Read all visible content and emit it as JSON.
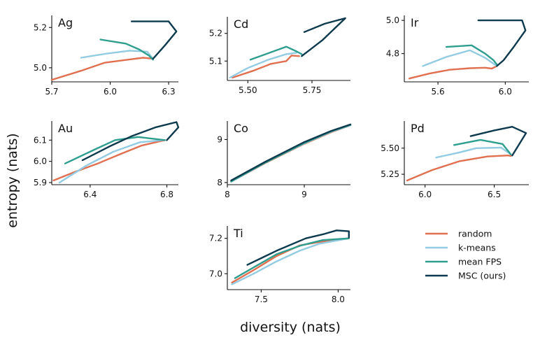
{
  "figure": {
    "xlabel": "diversity (nats)",
    "ylabel": "entropy (nats)"
  },
  "legend": [
    {
      "key": "random",
      "label": "random",
      "color": "#e07050"
    },
    {
      "key": "kmeans",
      "label": "k-means",
      "color": "#92cbe2"
    },
    {
      "key": "fps",
      "label": "mean FPS",
      "color": "#2e9e8e"
    },
    {
      "key": "msc",
      "label": "MSC (ours)",
      "color": "#0e3a4e"
    }
  ],
  "chart_data": [
    {
      "type": "line",
      "title": "Ag",
      "xlim": [
        5.7,
        6.35
      ],
      "ylim": [
        4.93,
        5.26
      ],
      "xticks": [
        {
          "v": 5.7,
          "label": "5.7"
        },
        {
          "v": 6.0,
          "label": "6.0"
        },
        {
          "v": 6.3,
          "label": "6.3"
        }
      ],
      "yticks": [
        {
          "v": 5.0,
          "label": "5.0"
        },
        {
          "v": 5.2,
          "label": "5.2"
        }
      ],
      "series": [
        {
          "name": "random",
          "points": [
            [
              5.7,
              4.94
            ],
            [
              5.85,
              4.985
            ],
            [
              5.97,
              5.025
            ],
            [
              6.09,
              5.04
            ],
            [
              6.17,
              5.05
            ],
            [
              6.22,
              5.045
            ]
          ]
        },
        {
          "name": "k-means",
          "points": [
            [
              5.85,
              5.05
            ],
            [
              5.98,
              5.07
            ],
            [
              6.1,
              5.085
            ],
            [
              6.19,
              5.08
            ],
            [
              6.22,
              5.045
            ]
          ]
        },
        {
          "name": "mean FPS",
          "points": [
            [
              5.95,
              5.14
            ],
            [
              6.08,
              5.12
            ],
            [
              6.15,
              5.09
            ],
            [
              6.2,
              5.06
            ],
            [
              6.22,
              5.04
            ]
          ]
        },
        {
          "name": "MSC (ours)",
          "points": [
            [
              6.11,
              5.23
            ],
            [
              6.3,
              5.23
            ],
            [
              6.34,
              5.18
            ],
            [
              6.28,
              5.11
            ],
            [
              6.22,
              5.045
            ]
          ]
        }
      ]
    },
    {
      "type": "line",
      "title": "Cd",
      "xlim": [
        5.42,
        5.9
      ],
      "ylim": [
        5.03,
        5.26
      ],
      "xticks": [
        {
          "v": 5.5,
          "label": "5.50"
        },
        {
          "v": 5.75,
          "label": "5.75"
        }
      ],
      "yticks": [
        {
          "v": 5.1,
          "label": "5.1"
        },
        {
          "v": 5.2,
          "label": "5.2"
        }
      ],
      "series": [
        {
          "name": "random",
          "points": [
            [
              5.44,
              5.04
            ],
            [
              5.52,
              5.065
            ],
            [
              5.59,
              5.09
            ],
            [
              5.65,
              5.1
            ],
            [
              5.67,
              5.12
            ],
            [
              5.7,
              5.118
            ]
          ]
        },
        {
          "name": "k-means",
          "points": [
            [
              5.43,
              5.04
            ],
            [
              5.5,
              5.075
            ],
            [
              5.58,
              5.105
            ],
            [
              5.65,
              5.125
            ],
            [
              5.69,
              5.13
            ]
          ]
        },
        {
          "name": "mean FPS",
          "points": [
            [
              5.51,
              5.105
            ],
            [
              5.57,
              5.125
            ],
            [
              5.65,
              5.152
            ],
            [
              5.69,
              5.135
            ],
            [
              5.71,
              5.125
            ]
          ]
        },
        {
          "name": "MSC (ours)",
          "points": [
            [
              5.72,
              5.205
            ],
            [
              5.8,
              5.235
            ],
            [
              5.88,
              5.255
            ],
            [
              5.79,
              5.175
            ],
            [
              5.71,
              5.118
            ]
          ]
        }
      ]
    },
    {
      "type": "line",
      "title": "Ir",
      "xlim": [
        5.4,
        6.14
      ],
      "ylim": [
        4.63,
        5.03
      ],
      "xticks": [
        {
          "v": 5.6,
          "label": "5.6"
        },
        {
          "v": 6.0,
          "label": "6.0"
        }
      ],
      "yticks": [
        {
          "v": 4.8,
          "label": "4.8"
        },
        {
          "v": 5.0,
          "label": "5.0"
        }
      ],
      "series": [
        {
          "name": "random",
          "points": [
            [
              5.43,
              4.65
            ],
            [
              5.55,
              4.68
            ],
            [
              5.67,
              4.703
            ],
            [
              5.79,
              4.712
            ],
            [
              5.88,
              4.715
            ],
            [
              5.92,
              4.71
            ],
            [
              5.95,
              4.725
            ]
          ]
        },
        {
          "name": "k-means",
          "points": [
            [
              5.51,
              4.725
            ],
            [
              5.65,
              4.78
            ],
            [
              5.79,
              4.82
            ],
            [
              5.88,
              4.775
            ],
            [
              5.95,
              4.725
            ]
          ]
        },
        {
          "name": "mean FPS",
          "points": [
            [
              5.65,
              4.84
            ],
            [
              5.8,
              4.85
            ],
            [
              5.88,
              4.8
            ],
            [
              5.93,
              4.76
            ],
            [
              5.95,
              4.735
            ]
          ]
        },
        {
          "name": "MSC (ours)",
          "points": [
            [
              5.84,
              5.0
            ],
            [
              6.1,
              5.0
            ],
            [
              6.12,
              4.94
            ],
            [
              6.05,
              4.84
            ],
            [
              5.99,
              4.76
            ],
            [
              5.95,
              4.725
            ]
          ]
        }
      ]
    },
    {
      "type": "line",
      "title": "Au",
      "xlim": [
        6.2,
        6.86
      ],
      "ylim": [
        5.89,
        6.19
      ],
      "xticks": [
        {
          "v": 6.4,
          "label": "6.4"
        },
        {
          "v": 6.8,
          "label": "6.8"
        }
      ],
      "yticks": [
        {
          "v": 5.9,
          "label": "5.9"
        },
        {
          "v": 6.0,
          "label": "6.0"
        },
        {
          "v": 6.1,
          "label": "6.1"
        }
      ],
      "series": [
        {
          "name": "random",
          "points": [
            [
              6.21,
              5.91
            ],
            [
              6.32,
              5.95
            ],
            [
              6.44,
              5.99
            ],
            [
              6.56,
              6.035
            ],
            [
              6.67,
              6.075
            ],
            [
              6.79,
              6.1
            ]
          ]
        },
        {
          "name": "k-means",
          "points": [
            [
              6.24,
              5.9
            ],
            [
              6.38,
              5.98
            ],
            [
              6.52,
              6.045
            ],
            [
              6.66,
              6.09
            ],
            [
              6.78,
              6.1
            ]
          ]
        },
        {
          "name": "mean FPS",
          "points": [
            [
              6.27,
              5.99
            ],
            [
              6.41,
              6.05
            ],
            [
              6.53,
              6.1
            ],
            [
              6.65,
              6.115
            ],
            [
              6.79,
              6.1
            ]
          ]
        },
        {
          "name": "MSC (ours)",
          "points": [
            [
              6.36,
              6.005
            ],
            [
              6.5,
              6.07
            ],
            [
              6.62,
              6.12
            ],
            [
              6.74,
              6.16
            ],
            [
              6.85,
              6.185
            ],
            [
              6.86,
              6.16
            ],
            [
              6.8,
              6.1
            ]
          ]
        }
      ]
    },
    {
      "type": "line",
      "title": "Co",
      "xlim": [
        8.0,
        9.6
      ],
      "ylim": [
        7.95,
        9.43
      ],
      "xticks": [
        {
          "v": 8.0,
          "label": "8"
        },
        {
          "v": 9.0,
          "label": "9"
        }
      ],
      "yticks": [
        {
          "v": 8.0,
          "label": "8"
        },
        {
          "v": 9.0,
          "label": "9"
        }
      ],
      "series": [
        {
          "name": "random",
          "points": [
            [
              8.05,
              8.02
            ],
            [
              8.5,
              8.46
            ],
            [
              9.0,
              8.9
            ],
            [
              9.35,
              9.17
            ],
            [
              9.6,
              9.33
            ]
          ]
        },
        {
          "name": "k-means",
          "points": [
            [
              8.05,
              8.02
            ],
            [
              8.5,
              8.47
            ],
            [
              9.0,
              8.91
            ],
            [
              9.35,
              9.18
            ],
            [
              9.6,
              9.33
            ]
          ]
        },
        {
          "name": "mean FPS",
          "points": [
            [
              8.05,
              8.03
            ],
            [
              8.5,
              8.47
            ],
            [
              9.0,
              8.92
            ],
            [
              9.35,
              9.19
            ],
            [
              9.6,
              9.34
            ]
          ]
        },
        {
          "name": "MSC (ours)",
          "points": [
            [
              8.05,
              8.05
            ],
            [
              8.5,
              8.49
            ],
            [
              9.0,
              8.94
            ],
            [
              9.35,
              9.2
            ],
            [
              9.6,
              9.35
            ]
          ]
        }
      ]
    },
    {
      "type": "line",
      "title": "Pd",
      "xlim": [
        5.85,
        6.75
      ],
      "ylim": [
        5.15,
        5.76
      ],
      "xticks": [
        {
          "v": 6.0,
          "label": "6.0"
        },
        {
          "v": 6.5,
          "label": "6.5"
        }
      ],
      "yticks": [
        {
          "v": 5.25,
          "label": "5.25"
        },
        {
          "v": 5.5,
          "label": "5.50"
        }
      ],
      "series": [
        {
          "name": "random",
          "points": [
            [
              5.87,
              5.19
            ],
            [
              6.05,
              5.29
            ],
            [
              6.25,
              5.375
            ],
            [
              6.45,
              5.42
            ],
            [
              6.6,
              5.43
            ],
            [
              6.62,
              5.425
            ]
          ]
        },
        {
          "name": "k-means",
          "points": [
            [
              6.08,
              5.41
            ],
            [
              6.25,
              5.46
            ],
            [
              6.37,
              5.5
            ],
            [
              6.55,
              5.505
            ],
            [
              6.62,
              5.44
            ]
          ]
        },
        {
          "name": "mean FPS",
          "points": [
            [
              6.21,
              5.53
            ],
            [
              6.4,
              5.58
            ],
            [
              6.56,
              5.54
            ],
            [
              6.62,
              5.44
            ]
          ]
        },
        {
          "name": "MSC (ours)",
          "points": [
            [
              6.33,
              5.615
            ],
            [
              6.5,
              5.67
            ],
            [
              6.63,
              5.705
            ],
            [
              6.73,
              5.645
            ],
            [
              6.63,
              5.43
            ]
          ]
        }
      ]
    },
    {
      "type": "line",
      "title": "Ti",
      "xlim": [
        7.28,
        8.08
      ],
      "ylim": [
        6.91,
        7.27
      ],
      "xticks": [
        {
          "v": 7.5,
          "label": "7.5"
        },
        {
          "v": 8.0,
          "label": "8.0"
        }
      ],
      "yticks": [
        {
          "v": 7.0,
          "label": "7.0"
        },
        {
          "v": 7.2,
          "label": "7.2"
        }
      ],
      "series": [
        {
          "name": "random",
          "points": [
            [
              7.31,
              6.95
            ],
            [
              7.45,
              7.02
            ],
            [
              7.6,
              7.1
            ],
            [
              7.75,
              7.16
            ],
            [
              7.88,
              7.18
            ],
            [
              8.0,
              7.19
            ],
            [
              8.07,
              7.2
            ]
          ]
        },
        {
          "name": "k-means",
          "points": [
            [
              7.31,
              6.94
            ],
            [
              7.45,
              7.0
            ],
            [
              7.6,
              7.07
            ],
            [
              7.75,
              7.13
            ],
            [
              7.88,
              7.17
            ],
            [
              8.07,
              7.2
            ]
          ]
        },
        {
          "name": "mean FPS",
          "points": [
            [
              7.33,
              6.975
            ],
            [
              7.46,
              7.04
            ],
            [
              7.6,
              7.11
            ],
            [
              7.76,
              7.16
            ],
            [
              7.9,
              7.19
            ],
            [
              8.07,
              7.2
            ]
          ]
        },
        {
          "name": "MSC (ours)",
          "points": [
            [
              7.41,
              7.05
            ],
            [
              7.6,
              7.13
            ],
            [
              7.79,
              7.2
            ],
            [
              7.91,
              7.225
            ],
            [
              7.99,
              7.245
            ],
            [
              8.07,
              7.24
            ],
            [
              8.07,
              7.205
            ]
          ]
        }
      ]
    }
  ]
}
